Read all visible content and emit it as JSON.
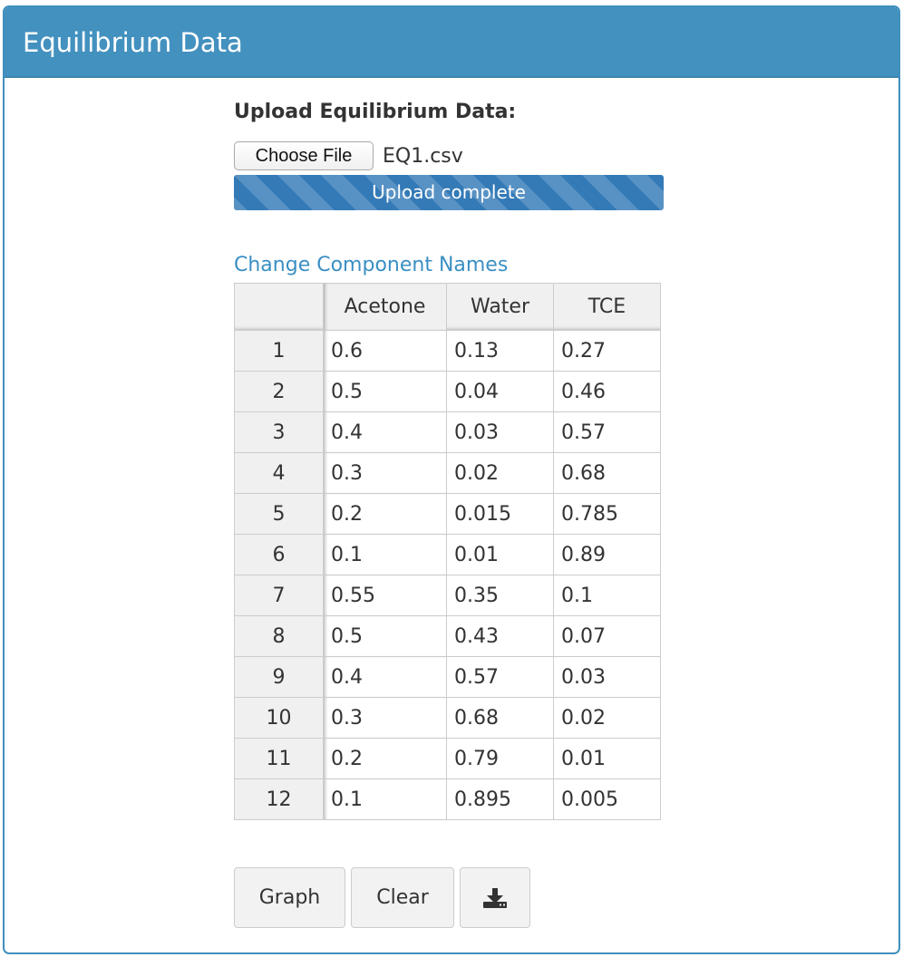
{
  "panel": {
    "title": "Equilibrium Data"
  },
  "upload": {
    "label": "Upload Equilibrium Data:",
    "choose_file_label": "Choose File",
    "file_name": "EQ1.csv",
    "progress_text": "Upload complete",
    "progress_percent": 100
  },
  "table": {
    "link_text": "Change Component Names",
    "corner": "",
    "columns": [
      "Acetone",
      "Water",
      "TCE"
    ],
    "rows": [
      {
        "n": "1",
        "a": "0.6",
        "w": "0.13",
        "t": "0.27"
      },
      {
        "n": "2",
        "a": "0.5",
        "w": "0.04",
        "t": "0.46"
      },
      {
        "n": "3",
        "a": "0.4",
        "w": "0.03",
        "t": "0.57"
      },
      {
        "n": "4",
        "a": "0.3",
        "w": "0.02",
        "t": "0.68"
      },
      {
        "n": "5",
        "a": "0.2",
        "w": "0.015",
        "t": "0.785"
      },
      {
        "n": "6",
        "a": "0.1",
        "w": "0.01",
        "t": "0.89"
      },
      {
        "n": "7",
        "a": "0.55",
        "w": "0.35",
        "t": "0.1"
      },
      {
        "n": "8",
        "a": "0.5",
        "w": "0.43",
        "t": "0.07"
      },
      {
        "n": "9",
        "a": "0.4",
        "w": "0.57",
        "t": "0.03"
      },
      {
        "n": "10",
        "a": "0.3",
        "w": "0.68",
        "t": "0.02"
      },
      {
        "n": "11",
        "a": "0.2",
        "w": "0.79",
        "t": "0.01"
      },
      {
        "n": "12",
        "a": "0.1",
        "w": "0.895",
        "t": "0.005"
      }
    ]
  },
  "buttons": {
    "graph": "Graph",
    "clear": "Clear",
    "download_icon": "download-icon"
  },
  "colors": {
    "header": "#4391bf",
    "progress": "#337ab7",
    "link": "#3a8fc4"
  }
}
